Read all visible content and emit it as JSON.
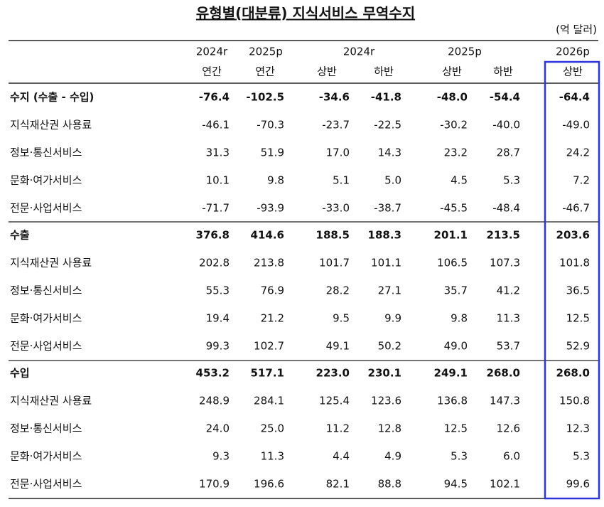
{
  "table": {
    "title": "유형별(대분류) 지식서비스 무역수지",
    "unit": "(억 달러)",
    "header": {
      "years": [
        "2024r",
        "2025p",
        "2024r",
        "2025p",
        "2026p"
      ],
      "periods": [
        "연간",
        "연간",
        "상반",
        "하반",
        "상반",
        "하반",
        "상반"
      ]
    },
    "sections": [
      {
        "total": {
          "label": "수지 (수출 - 수입)",
          "values": [
            "-76.4",
            "-102.5",
            "-34.6",
            "-41.8",
            "-48.0",
            "-54.4",
            "-64.4"
          ]
        },
        "items": [
          {
            "label": "지식재산권 사용료",
            "values": [
              "-46.1",
              "-70.3",
              "-23.7",
              "-22.5",
              "-30.2",
              "-40.0",
              "-49.0"
            ]
          },
          {
            "label": "정보·통신서비스",
            "values": [
              "31.3",
              "51.9",
              "17.0",
              "14.3",
              "23.2",
              "28.7",
              "24.2"
            ]
          },
          {
            "label": "문화·여가서비스",
            "values": [
              "10.1",
              "9.8",
              "5.1",
              "5.0",
              "4.5",
              "5.3",
              "7.2"
            ]
          },
          {
            "label": "전문·사업서비스",
            "values": [
              "-71.7",
              "-93.9",
              "-33.0",
              "-38.7",
              "-45.5",
              "-48.4",
              "-46.7"
            ]
          }
        ]
      },
      {
        "total": {
          "label": "수출",
          "values": [
            "376.8",
            "414.6",
            "188.5",
            "188.3",
            "201.1",
            "213.5",
            "203.6"
          ]
        },
        "items": [
          {
            "label": "지식재산권 사용료",
            "values": [
              "202.8",
              "213.8",
              "101.7",
              "101.1",
              "106.5",
              "107.3",
              "101.8"
            ]
          },
          {
            "label": "정보·통신서비스",
            "values": [
              "55.3",
              "76.9",
              "28.2",
              "27.1",
              "35.7",
              "41.2",
              "36.5"
            ]
          },
          {
            "label": "문화·여가서비스",
            "values": [
              "19.4",
              "21.2",
              "9.5",
              "9.9",
              "9.8",
              "11.3",
              "12.5"
            ]
          },
          {
            "label": "전문·사업서비스",
            "values": [
              "99.3",
              "102.7",
              "49.1",
              "50.2",
              "49.0",
              "53.7",
              "52.9"
            ]
          }
        ]
      },
      {
        "total": {
          "label": "수입",
          "values": [
            "453.2",
            "517.1",
            "223.0",
            "230.1",
            "249.1",
            "268.0",
            "268.0"
          ]
        },
        "items": [
          {
            "label": "지식재산권 사용료",
            "values": [
              "248.9",
              "284.1",
              "125.4",
              "123.6",
              "136.8",
              "147.3",
              "150.8"
            ]
          },
          {
            "label": "정보·통신서비스",
            "values": [
              "24.0",
              "25.0",
              "11.2",
              "12.8",
              "12.5",
              "12.6",
              "12.3"
            ]
          },
          {
            "label": "문화·여가서비스",
            "values": [
              "9.3",
              "11.3",
              "4.4",
              "4.9",
              "5.3",
              "6.0",
              "5.3"
            ]
          },
          {
            "label": "전문·사업서비스",
            "values": [
              "170.9",
              "196.6",
              "82.1",
              "88.8",
              "94.5",
              "102.1",
              "99.6"
            ]
          }
        ]
      }
    ]
  }
}
